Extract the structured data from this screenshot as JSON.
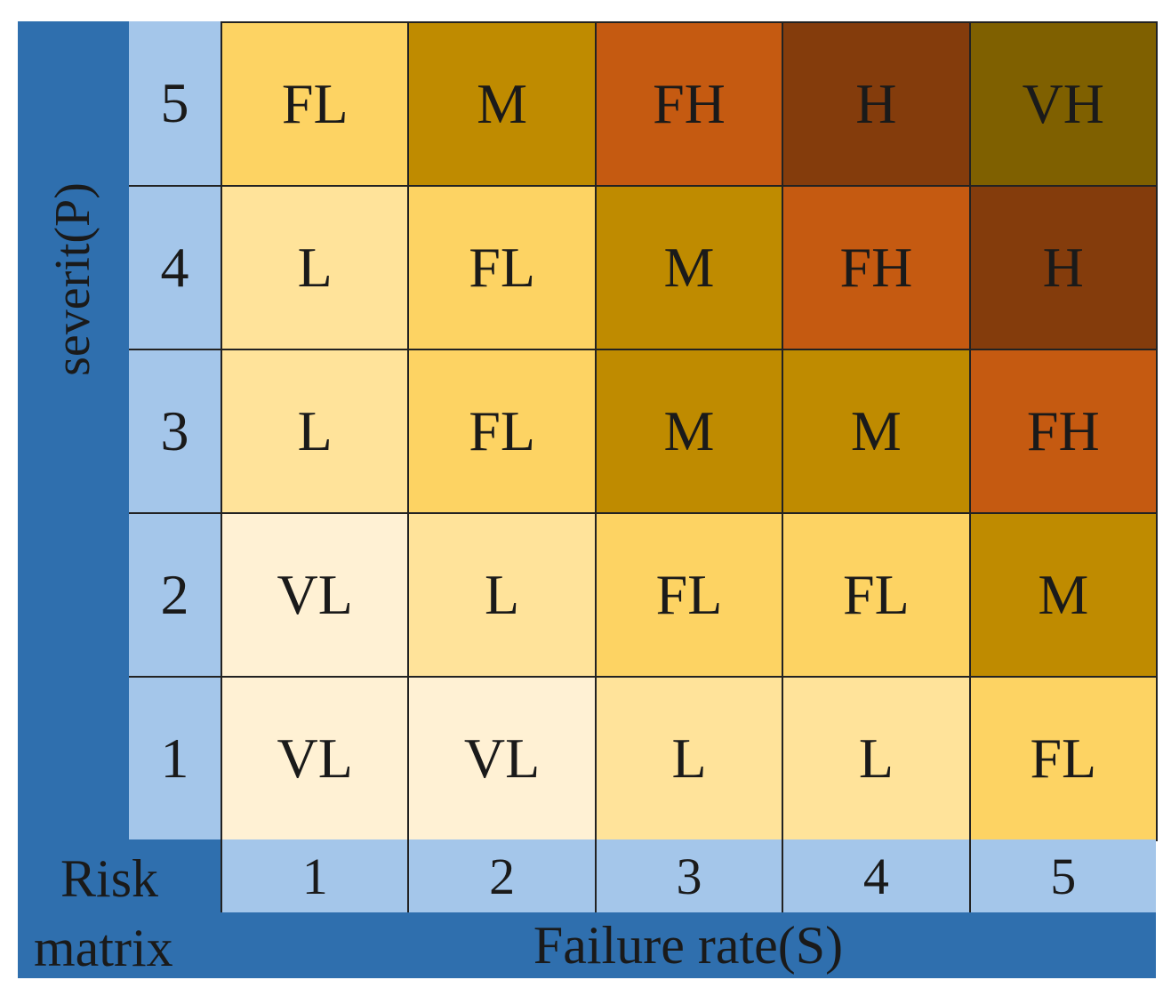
{
  "title": "Risk matrix",
  "y_axis": {
    "label": "severit(P)",
    "ticks": [
      "5",
      "4",
      "3",
      "2",
      "1"
    ]
  },
  "x_axis": {
    "label": "Failure rate(S)",
    "ticks": [
      "1",
      "2",
      "3",
      "4",
      "5"
    ]
  },
  "corner": {
    "line1": "Risk",
    "line2": "matrix"
  },
  "level_colors": {
    "VL": "#fff1d4",
    "L": "#ffe39a",
    "FL": "#fdd363",
    "M": "#bf8b00",
    "FH": "#c55a11",
    "H": "#843c0c",
    "VH": "#7f6000"
  },
  "rows": [
    {
      "severity": "5",
      "cells": [
        "FL",
        "M",
        "FH",
        "H",
        "VH"
      ]
    },
    {
      "severity": "4",
      "cells": [
        "L",
        "FL",
        "M",
        "FH",
        "H"
      ]
    },
    {
      "severity": "3",
      "cells": [
        "L",
        "FL",
        "M",
        "M",
        "FH"
      ]
    },
    {
      "severity": "2",
      "cells": [
        "VL",
        "L",
        "FL",
        "FL",
        "M"
      ]
    },
    {
      "severity": "1",
      "cells": [
        "VL",
        "VL",
        "L",
        "L",
        "FL"
      ]
    }
  ]
}
